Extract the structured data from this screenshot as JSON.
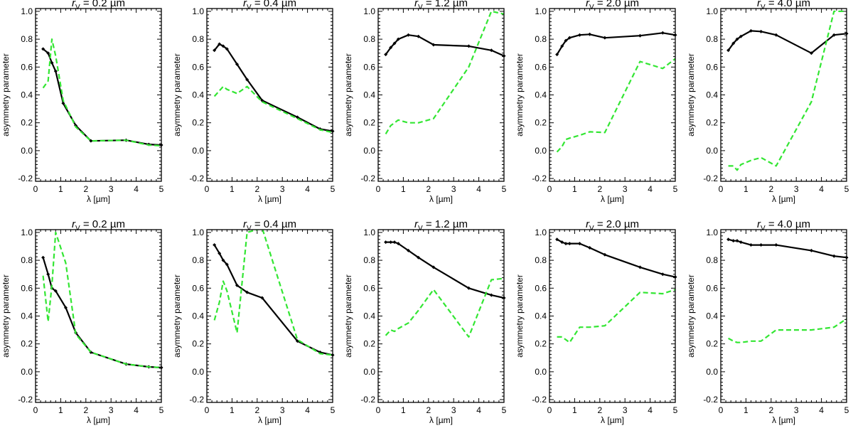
{
  "figure": {
    "rows": 2,
    "cols": 5,
    "series_colors": {
      "black": "#000000",
      "green": "#33e633"
    }
  },
  "chart_data": [
    {
      "type": "line",
      "title": "r_V = 0.2 µm",
      "title_var": "r",
      "title_sub": "V",
      "title_rest": " = 0.2 µm",
      "xlabel": "λ [µm]",
      "ylabel": "asymmetry parameter",
      "xlim": [
        0,
        5
      ],
      "ylim": [
        -0.22,
        1.02
      ],
      "xticks": [
        0,
        1,
        2,
        3,
        4,
        5
      ],
      "yticks": [
        -0.2,
        0.0,
        0.2,
        0.4,
        0.6,
        0.8,
        1.0
      ],
      "series": [
        {
          "name": "black",
          "color": "#000000",
          "style": "solid",
          "markers": true,
          "x": [
            0.3,
            0.5,
            0.65,
            0.8,
            1.1,
            1.6,
            2.2,
            3.6,
            4.5,
            5.0
          ],
          "y": [
            0.73,
            0.7,
            0.63,
            0.57,
            0.34,
            0.18,
            0.07,
            0.075,
            0.045,
            0.04
          ]
        },
        {
          "name": "green",
          "color": "#33e633",
          "style": "dashed",
          "markers": false,
          "x": [
            0.3,
            0.5,
            0.65,
            0.8,
            1.1,
            1.6,
            2.2,
            3.6,
            4.5,
            5.0
          ],
          "y": [
            0.45,
            0.5,
            0.8,
            0.68,
            0.36,
            0.17,
            0.07,
            0.075,
            0.04,
            0.035
          ]
        }
      ]
    },
    {
      "type": "line",
      "title": "r_V = 0.4 µm",
      "title_var": "r",
      "title_sub": "V",
      "title_rest": " = 0.4 µm",
      "xlabel": "λ [µm]",
      "ylabel": "asymmetry parameter",
      "xlim": [
        0,
        5
      ],
      "ylim": [
        -0.22,
        1.02
      ],
      "xticks": [
        0,
        1,
        2,
        3,
        4,
        5
      ],
      "yticks": [
        -0.2,
        0.0,
        0.2,
        0.4,
        0.6,
        0.8,
        1.0
      ],
      "series": [
        {
          "name": "black",
          "color": "#000000",
          "style": "solid",
          "markers": true,
          "x": [
            0.3,
            0.5,
            0.65,
            0.8,
            1.2,
            1.6,
            2.2,
            3.6,
            4.5,
            5.0
          ],
          "y": [
            0.72,
            0.765,
            0.75,
            0.73,
            0.62,
            0.51,
            0.36,
            0.24,
            0.155,
            0.14
          ]
        },
        {
          "name": "green",
          "color": "#33e633",
          "style": "dashed",
          "markers": false,
          "x": [
            0.3,
            0.5,
            0.65,
            0.8,
            1.2,
            1.6,
            2.2,
            3.6,
            4.5,
            5.0
          ],
          "y": [
            0.39,
            0.43,
            0.46,
            0.44,
            0.41,
            0.46,
            0.35,
            0.23,
            0.15,
            0.13
          ]
        }
      ]
    },
    {
      "type": "line",
      "title": "r_V = 1.2 µm",
      "title_var": "r",
      "title_sub": "V",
      "title_rest": " = 1.2 µm",
      "xlabel": "λ [µm]",
      "ylabel": "asymmetry parameter",
      "xlim": [
        0,
        5
      ],
      "ylim": [
        -0.22,
        1.02
      ],
      "xticks": [
        0,
        1,
        2,
        3,
        4,
        5
      ],
      "yticks": [
        -0.2,
        0.0,
        0.2,
        0.4,
        0.6,
        0.8,
        1.0
      ],
      "series": [
        {
          "name": "black",
          "color": "#000000",
          "style": "solid",
          "markers": true,
          "x": [
            0.3,
            0.5,
            0.65,
            0.8,
            1.2,
            1.6,
            2.2,
            3.6,
            4.5,
            5.0
          ],
          "y": [
            0.69,
            0.74,
            0.77,
            0.8,
            0.83,
            0.82,
            0.76,
            0.75,
            0.72,
            0.68
          ]
        },
        {
          "name": "green",
          "color": "#33e633",
          "style": "dashed",
          "markers": false,
          "x": [
            0.3,
            0.5,
            0.65,
            0.8,
            1.2,
            1.6,
            2.2,
            3.6,
            4.5,
            5.0
          ],
          "y": [
            0.12,
            0.18,
            0.2,
            0.22,
            0.2,
            0.2,
            0.23,
            0.6,
            1.0,
            0.98
          ]
        }
      ]
    },
    {
      "type": "line",
      "title": "r_V = 2.0 µm",
      "title_var": "r",
      "title_sub": "V",
      "title_rest": " = 2.0 µm",
      "xlabel": "λ [µm]",
      "ylabel": "asymmetry parameter",
      "xlim": [
        0,
        5
      ],
      "ylim": [
        -0.22,
        1.02
      ],
      "xticks": [
        0,
        1,
        2,
        3,
        4,
        5
      ],
      "yticks": [
        -0.2,
        0.0,
        0.2,
        0.4,
        0.6,
        0.8,
        1.0
      ],
      "series": [
        {
          "name": "black",
          "color": "#000000",
          "style": "solid",
          "markers": true,
          "x": [
            0.3,
            0.5,
            0.65,
            0.8,
            1.2,
            1.6,
            2.2,
            3.6,
            4.5,
            5.0
          ],
          "y": [
            0.69,
            0.75,
            0.79,
            0.81,
            0.83,
            0.835,
            0.81,
            0.825,
            0.845,
            0.83
          ]
        },
        {
          "name": "green",
          "color": "#33e633",
          "style": "dashed",
          "markers": false,
          "x": [
            0.3,
            0.5,
            0.65,
            0.8,
            1.2,
            1.6,
            2.2,
            3.6,
            4.5,
            5.0
          ],
          "y": [
            -0.01,
            0.03,
            0.08,
            0.09,
            0.11,
            0.135,
            0.13,
            0.64,
            0.59,
            0.66
          ]
        }
      ]
    },
    {
      "type": "line",
      "title": "r_V = 4.0 µm",
      "title_var": "r",
      "title_sub": "V",
      "title_rest": " = 4.0 µm",
      "xlabel": "λ [µm]",
      "ylabel": "asymmetry parameter",
      "xlim": [
        0,
        5
      ],
      "ylim": [
        -0.22,
        1.02
      ],
      "xticks": [
        0,
        1,
        2,
        3,
        4,
        5
      ],
      "yticks": [
        -0.2,
        0.0,
        0.2,
        0.4,
        0.6,
        0.8,
        1.0
      ],
      "series": [
        {
          "name": "black",
          "color": "#000000",
          "style": "solid",
          "markers": true,
          "x": [
            0.3,
            0.5,
            0.65,
            0.8,
            1.2,
            1.6,
            2.2,
            3.6,
            4.5,
            5.0
          ],
          "y": [
            0.72,
            0.77,
            0.8,
            0.82,
            0.86,
            0.855,
            0.83,
            0.7,
            0.83,
            0.84
          ]
        },
        {
          "name": "green",
          "color": "#33e633",
          "style": "dashed",
          "markers": false,
          "x": [
            0.3,
            0.5,
            0.65,
            0.8,
            1.2,
            1.6,
            2.2,
            3.6,
            4.5,
            5.0
          ],
          "y": [
            -0.11,
            -0.11,
            -0.14,
            -0.1,
            -0.07,
            -0.05,
            -0.11,
            0.35,
            1.0,
            1.0
          ]
        }
      ]
    },
    {
      "type": "line",
      "title": "r_V = 0.2 µm",
      "title_var": "r",
      "title_sub": "V",
      "title_rest": " = 0.2 µm",
      "xlabel": "λ [µm]",
      "ylabel": "asymmetry parameter",
      "xlim": [
        0,
        5
      ],
      "ylim": [
        -0.22,
        1.02
      ],
      "xticks": [
        0,
        1,
        2,
        3,
        4,
        5
      ],
      "yticks": [
        -0.2,
        0.0,
        0.2,
        0.4,
        0.6,
        0.8,
        1.0
      ],
      "series": [
        {
          "name": "black",
          "color": "#000000",
          "style": "solid",
          "markers": true,
          "x": [
            0.3,
            0.5,
            0.65,
            0.8,
            1.2,
            1.6,
            2.2,
            3.6,
            4.5,
            5.0
          ],
          "y": [
            0.82,
            0.7,
            0.6,
            0.58,
            0.46,
            0.28,
            0.14,
            0.055,
            0.035,
            0.03
          ]
        },
        {
          "name": "green",
          "color": "#33e633",
          "style": "dashed",
          "markers": false,
          "x": [
            0.3,
            0.5,
            0.65,
            0.8,
            1.2,
            1.6,
            2.2,
            3.6,
            4.5,
            5.0
          ],
          "y": [
            0.69,
            0.36,
            0.62,
            1.0,
            0.78,
            0.27,
            0.14,
            0.055,
            0.035,
            0.03
          ]
        }
      ]
    },
    {
      "type": "line",
      "title": "r_V = 0.4 µm",
      "title_var": "r",
      "title_sub": "V",
      "title_rest": " = 0.4 µm",
      "xlabel": "λ [µm]",
      "ylabel": "asymmetry parameter",
      "xlim": [
        0,
        5
      ],
      "ylim": [
        -0.22,
        1.02
      ],
      "xticks": [
        0,
        1,
        2,
        3,
        4,
        5
      ],
      "yticks": [
        -0.2,
        0.0,
        0.2,
        0.4,
        0.6,
        0.8,
        1.0
      ],
      "series": [
        {
          "name": "black",
          "color": "#000000",
          "style": "solid",
          "markers": true,
          "x": [
            0.3,
            0.5,
            0.65,
            0.8,
            1.2,
            1.6,
            2.2,
            3.6,
            4.5,
            5.0
          ],
          "y": [
            0.91,
            0.85,
            0.8,
            0.77,
            0.62,
            0.57,
            0.53,
            0.22,
            0.14,
            0.12
          ]
        },
        {
          "name": "green",
          "color": "#33e633",
          "style": "dashed",
          "markers": false,
          "x": [
            0.3,
            0.5,
            0.65,
            0.8,
            1.2,
            1.6,
            2.2,
            3.6,
            4.5,
            5.0
          ],
          "y": [
            0.37,
            0.5,
            0.65,
            0.58,
            0.28,
            1.0,
            1.03,
            0.23,
            0.13,
            0.12
          ]
        }
      ]
    },
    {
      "type": "line",
      "title": "r_V = 1.2 µm",
      "title_var": "r",
      "title_sub": "V",
      "title_rest": " = 1.2 µm",
      "xlabel": "λ [µm]",
      "ylabel": "asymmetry parameter",
      "xlim": [
        0,
        5
      ],
      "ylim": [
        -0.22,
        1.02
      ],
      "xticks": [
        0,
        1,
        2,
        3,
        4,
        5
      ],
      "yticks": [
        -0.2,
        0.0,
        0.2,
        0.4,
        0.6,
        0.8,
        1.0
      ],
      "series": [
        {
          "name": "black",
          "color": "#000000",
          "style": "solid",
          "markers": true,
          "x": [
            0.3,
            0.5,
            0.65,
            0.8,
            1.2,
            1.6,
            2.2,
            3.6,
            4.5,
            5.0
          ],
          "y": [
            0.93,
            0.93,
            0.93,
            0.92,
            0.87,
            0.82,
            0.75,
            0.6,
            0.55,
            0.53
          ]
        },
        {
          "name": "green",
          "color": "#33e633",
          "style": "dashed",
          "markers": false,
          "x": [
            0.3,
            0.5,
            0.65,
            0.8,
            1.2,
            1.6,
            2.2,
            3.6,
            4.5,
            5.0
          ],
          "y": [
            0.26,
            0.3,
            0.29,
            0.31,
            0.35,
            0.44,
            0.59,
            0.25,
            0.66,
            0.67
          ]
        }
      ]
    },
    {
      "type": "line",
      "title": "r_V = 2.0 µm",
      "title_var": "r",
      "title_sub": "V",
      "title_rest": " = 2.0 µm",
      "xlabel": "λ [µm]",
      "ylabel": "asymmetry parameter",
      "xlim": [
        0,
        5
      ],
      "ylim": [
        -0.22,
        1.02
      ],
      "xticks": [
        0,
        1,
        2,
        3,
        4,
        5
      ],
      "yticks": [
        -0.2,
        0.0,
        0.2,
        0.4,
        0.6,
        0.8,
        1.0
      ],
      "series": [
        {
          "name": "black",
          "color": "#000000",
          "style": "solid",
          "markers": true,
          "x": [
            0.3,
            0.5,
            0.65,
            0.8,
            1.2,
            1.6,
            2.2,
            3.6,
            4.5,
            5.0
          ],
          "y": [
            0.95,
            0.93,
            0.92,
            0.92,
            0.92,
            0.89,
            0.84,
            0.75,
            0.7,
            0.68
          ]
        },
        {
          "name": "green",
          "color": "#33e633",
          "style": "dashed",
          "markers": false,
          "x": [
            0.3,
            0.5,
            0.65,
            0.8,
            1.2,
            1.6,
            2.2,
            3.6,
            4.5,
            5.0
          ],
          "y": [
            0.25,
            0.25,
            0.23,
            0.21,
            0.32,
            0.32,
            0.33,
            0.57,
            0.56,
            0.59
          ]
        }
      ]
    },
    {
      "type": "line",
      "title": "r_V = 4.0 µm",
      "title_var": "r",
      "title_sub": "V",
      "title_rest": " = 4.0 µm",
      "xlabel": "λ [µm]",
      "ylabel": "asymmetry parameter",
      "xlim": [
        0,
        5
      ],
      "ylim": [
        -0.22,
        1.02
      ],
      "xticks": [
        0,
        1,
        2,
        3,
        4,
        5
      ],
      "yticks": [
        -0.2,
        0.0,
        0.2,
        0.4,
        0.6,
        0.8,
        1.0
      ],
      "series": [
        {
          "name": "black",
          "color": "#000000",
          "style": "solid",
          "markers": true,
          "x": [
            0.3,
            0.5,
            0.65,
            0.8,
            1.2,
            1.6,
            2.2,
            3.6,
            4.5,
            5.0
          ],
          "y": [
            0.95,
            0.94,
            0.94,
            0.93,
            0.91,
            0.91,
            0.91,
            0.87,
            0.83,
            0.82
          ]
        },
        {
          "name": "green",
          "color": "#33e633",
          "style": "dashed",
          "markers": false,
          "x": [
            0.3,
            0.5,
            0.65,
            0.8,
            1.2,
            1.6,
            2.2,
            3.6,
            4.5,
            5.0
          ],
          "y": [
            0.24,
            0.22,
            0.21,
            0.21,
            0.22,
            0.22,
            0.3,
            0.3,
            0.32,
            0.38
          ]
        }
      ]
    }
  ]
}
